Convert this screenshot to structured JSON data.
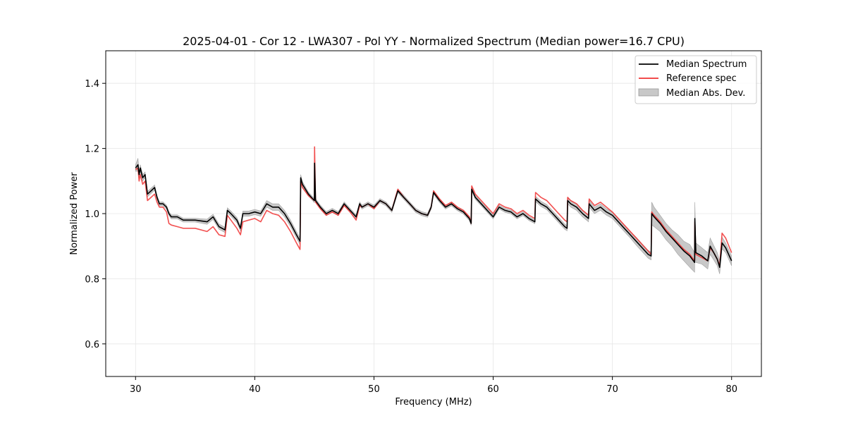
{
  "chart_data": {
    "type": "line",
    "title": "2025-04-01 - Cor 12 - LWA307 - Pol YY - Normalized Spectrum (Median power=16.7 CPU)",
    "xlabel": "Frequency (MHz)",
    "ylabel": "Normalized Power",
    "xlim": [
      27.5,
      82.5
    ],
    "ylim": [
      0.5,
      1.5
    ],
    "xticks": [
      30,
      40,
      50,
      60,
      70,
      80
    ],
    "yticks": [
      0.6,
      0.8,
      1.0,
      1.2,
      1.4
    ],
    "xtick_labels": [
      "30",
      "40",
      "50",
      "60",
      "70",
      "80"
    ],
    "ytick_labels": [
      "0.6",
      "0.8",
      "1.0",
      "1.2",
      "1.4"
    ],
    "grid": true,
    "legend_position": "top-right",
    "legend": [
      "Median Spectrum",
      "Reference spec",
      "Median Abs. Dev."
    ],
    "colors": {
      "median": "#000000",
      "reference": "#f03232",
      "mad_fill": "#c8c8c8",
      "grid": "#e6e6e6"
    },
    "series": [
      {
        "name": "Median Spectrum",
        "x": [
          30.0,
          30.2,
          30.3,
          30.4,
          30.6,
          30.8,
          31.0,
          31.3,
          31.6,
          31.8,
          32.0,
          32.3,
          32.6,
          32.8,
          33.0,
          33.5,
          34.0,
          35.0,
          36.0,
          36.5,
          37.0,
          37.5,
          37.7,
          38.0,
          38.5,
          38.8,
          39.0,
          39.5,
          40.0,
          40.5,
          41.0,
          41.5,
          42.0,
          42.5,
          43.0,
          43.5,
          43.8,
          43.85,
          44.0,
          44.5,
          45.0,
          45.02,
          45.1,
          45.5,
          46.0,
          46.5,
          47.0,
          47.5,
          48.0,
          48.5,
          48.8,
          49.0,
          49.5,
          50.0,
          50.5,
          51.0,
          51.5,
          52.0,
          52.5,
          53.0,
          53.5,
          54.0,
          54.5,
          54.8,
          55.0,
          55.5,
          56.0,
          56.5,
          57.0,
          57.5,
          58.0,
          58.15,
          58.2,
          58.5,
          59.0,
          59.5,
          60.0,
          60.5,
          61.0,
          61.5,
          62.0,
          62.5,
          63.0,
          63.5,
          63.55,
          64.0,
          64.5,
          65.0,
          65.5,
          66.0,
          66.2,
          66.25,
          66.5,
          67.0,
          67.5,
          68.0,
          68.05,
          68.5,
          69.0,
          69.5,
          70.0,
          70.5,
          71.0,
          71.5,
          72.0,
          72.5,
          73.0,
          73.25,
          73.3,
          73.5,
          74.0,
          74.5,
          75.0,
          75.5,
          76.0,
          76.5,
          76.9,
          76.92,
          77.0,
          77.5,
          78.0,
          78.2,
          78.5,
          78.8,
          79.0,
          79.2,
          79.5,
          80.0
        ],
        "values": [
          1.14,
          1.15,
          1.12,
          1.14,
          1.11,
          1.12,
          1.06,
          1.07,
          1.08,
          1.05,
          1.03,
          1.03,
          1.02,
          1.0,
          0.99,
          0.99,
          0.98,
          0.98,
          0.975,
          0.99,
          0.96,
          0.95,
          1.01,
          1.0,
          0.98,
          0.955,
          1.0,
          1.0,
          1.005,
          1.0,
          1.03,
          1.02,
          1.02,
          1.0,
          0.97,
          0.935,
          0.915,
          1.11,
          1.09,
          1.06,
          1.04,
          1.155,
          1.04,
          1.02,
          1.0,
          1.01,
          1.0,
          1.03,
          1.01,
          0.99,
          1.03,
          1.02,
          1.03,
          1.02,
          1.04,
          1.03,
          1.01,
          1.07,
          1.05,
          1.03,
          1.01,
          1.0,
          0.995,
          1.02,
          1.065,
          1.04,
          1.02,
          1.03,
          1.015,
          1.005,
          0.985,
          0.97,
          1.075,
          1.05,
          1.03,
          1.01,
          0.99,
          1.02,
          1.01,
          1.005,
          0.99,
          1.0,
          0.985,
          0.975,
          1.045,
          1.03,
          1.02,
          1.0,
          0.98,
          0.96,
          0.955,
          1.04,
          1.03,
          1.02,
          1.0,
          0.985,
          1.03,
          1.01,
          1.02,
          1.005,
          0.995,
          0.975,
          0.955,
          0.935,
          0.915,
          0.895,
          0.875,
          0.87,
          1.0,
          0.99,
          0.97,
          0.945,
          0.925,
          0.905,
          0.885,
          0.87,
          0.85,
          0.985,
          0.88,
          0.87,
          0.855,
          0.9,
          0.88,
          0.86,
          0.835,
          0.91,
          0.895,
          0.855
        ]
      },
      {
        "name": "Reference spec",
        "x": [
          30.0,
          30.2,
          30.3,
          30.4,
          30.6,
          30.8,
          31.0,
          31.3,
          31.6,
          31.8,
          32.0,
          32.3,
          32.6,
          32.8,
          33.0,
          33.5,
          34.0,
          35.0,
          36.0,
          36.5,
          37.0,
          37.5,
          37.7,
          38.0,
          38.5,
          38.8,
          39.0,
          39.5,
          40.0,
          40.5,
          41.0,
          41.5,
          42.0,
          42.5,
          43.0,
          43.5,
          43.8,
          43.85,
          44.0,
          44.5,
          45.0,
          45.02,
          45.1,
          45.5,
          46.0,
          46.5,
          47.0,
          47.5,
          48.0,
          48.5,
          48.8,
          49.0,
          49.5,
          50.0,
          50.5,
          51.0,
          51.5,
          52.0,
          52.5,
          53.0,
          53.5,
          54.0,
          54.5,
          54.8,
          55.0,
          55.5,
          56.0,
          56.5,
          57.0,
          57.5,
          58.0,
          58.15,
          58.2,
          58.5,
          59.0,
          59.5,
          60.0,
          60.5,
          61.0,
          61.5,
          62.0,
          62.5,
          63.0,
          63.5,
          63.55,
          64.0,
          64.5,
          65.0,
          65.5,
          66.0,
          66.2,
          66.25,
          66.5,
          67.0,
          67.5,
          68.0,
          68.05,
          68.5,
          69.0,
          69.5,
          70.0,
          70.5,
          71.0,
          71.5,
          72.0,
          72.5,
          73.0,
          73.25,
          73.3,
          73.5,
          74.0,
          74.5,
          75.0,
          75.5,
          76.0,
          76.5,
          76.9,
          76.92,
          77.0,
          77.5,
          78.0,
          78.2,
          78.5,
          78.8,
          79.0,
          79.2,
          79.5,
          80.0
        ],
        "values": [
          1.135,
          1.14,
          1.1,
          1.12,
          1.09,
          1.1,
          1.04,
          1.05,
          1.06,
          1.035,
          1.02,
          1.02,
          1.005,
          0.97,
          0.965,
          0.96,
          0.955,
          0.955,
          0.945,
          0.96,
          0.935,
          0.93,
          0.995,
          0.98,
          0.955,
          0.935,
          0.975,
          0.98,
          0.985,
          0.975,
          1.01,
          1.0,
          0.995,
          0.975,
          0.945,
          0.91,
          0.89,
          1.1,
          1.08,
          1.055,
          1.04,
          1.205,
          1.035,
          1.015,
          0.995,
          1.005,
          0.995,
          1.025,
          1.005,
          0.98,
          1.025,
          1.02,
          1.03,
          1.015,
          1.04,
          1.03,
          1.01,
          1.075,
          1.05,
          1.03,
          1.01,
          1.0,
          0.995,
          1.02,
          1.07,
          1.045,
          1.025,
          1.035,
          1.02,
          1.01,
          0.99,
          0.97,
          1.085,
          1.06,
          1.04,
          1.02,
          1.0,
          1.03,
          1.02,
          1.015,
          1.0,
          1.01,
          0.995,
          0.985,
          1.065,
          1.05,
          1.04,
          1.02,
          1.0,
          0.98,
          0.975,
          1.05,
          1.04,
          1.03,
          1.01,
          0.995,
          1.045,
          1.025,
          1.035,
          1.02,
          1.005,
          0.985,
          0.965,
          0.945,
          0.925,
          0.905,
          0.885,
          0.875,
          1.005,
          0.995,
          0.975,
          0.95,
          0.93,
          0.91,
          0.89,
          0.875,
          0.855,
          0.975,
          0.875,
          0.865,
          0.855,
          0.895,
          0.88,
          0.86,
          0.84,
          0.94,
          0.925,
          0.88
        ]
      },
      {
        "name": "Median Abs. Dev.",
        "x": [
          30.0,
          30.2,
          30.3,
          30.4,
          30.6,
          30.8,
          31.0,
          31.3,
          31.6,
          31.8,
          32.0,
          32.3,
          32.6,
          32.8,
          33.0,
          33.5,
          34.0,
          35.0,
          36.0,
          36.5,
          37.0,
          37.5,
          37.7,
          38.0,
          38.5,
          38.8,
          39.0,
          39.5,
          40.0,
          40.5,
          41.0,
          41.5,
          42.0,
          42.5,
          43.0,
          43.5,
          43.8,
          43.85,
          44.0,
          44.5,
          45.0,
          45.02,
          45.1,
          45.5,
          46.0,
          46.5,
          47.0,
          47.5,
          48.0,
          48.5,
          48.8,
          49.0,
          49.5,
          50.0,
          50.5,
          51.0,
          51.5,
          52.0,
          52.5,
          53.0,
          53.5,
          54.0,
          54.5,
          54.8,
          55.0,
          55.5,
          56.0,
          56.5,
          57.0,
          57.5,
          58.0,
          58.15,
          58.2,
          58.5,
          59.0,
          59.5,
          60.0,
          60.5,
          61.0,
          61.5,
          62.0,
          62.5,
          63.0,
          63.5,
          63.55,
          64.0,
          64.5,
          65.0,
          65.5,
          66.0,
          66.2,
          66.25,
          66.5,
          67.0,
          67.5,
          68.0,
          68.05,
          68.5,
          69.0,
          69.5,
          70.0,
          70.5,
          71.0,
          71.5,
          72.0,
          72.5,
          73.0,
          73.25,
          73.3,
          73.5,
          74.0,
          74.5,
          75.0,
          75.5,
          76.0,
          76.5,
          76.9,
          76.92,
          77.0,
          77.5,
          78.0,
          78.2,
          78.5,
          78.8,
          79.0,
          79.2,
          79.5,
          80.0
        ],
        "deviation": [
          0.01,
          0.02,
          0.01,
          0.01,
          0.01,
          0.008,
          0.008,
          0.008,
          0.008,
          0.006,
          0.006,
          0.006,
          0.006,
          0.006,
          0.006,
          0.006,
          0.006,
          0.006,
          0.008,
          0.008,
          0.008,
          0.008,
          0.008,
          0.008,
          0.008,
          0.008,
          0.008,
          0.008,
          0.008,
          0.008,
          0.01,
          0.01,
          0.01,
          0.01,
          0.01,
          0.01,
          0.01,
          0.01,
          0.008,
          0.006,
          0.006,
          0.006,
          0.006,
          0.006,
          0.006,
          0.006,
          0.006,
          0.006,
          0.006,
          0.006,
          0.006,
          0.006,
          0.006,
          0.006,
          0.006,
          0.006,
          0.006,
          0.006,
          0.006,
          0.006,
          0.006,
          0.006,
          0.006,
          0.006,
          0.006,
          0.006,
          0.006,
          0.006,
          0.006,
          0.006,
          0.006,
          0.006,
          0.006,
          0.006,
          0.006,
          0.006,
          0.006,
          0.006,
          0.006,
          0.006,
          0.006,
          0.006,
          0.006,
          0.006,
          0.008,
          0.008,
          0.008,
          0.008,
          0.008,
          0.008,
          0.008,
          0.01,
          0.01,
          0.01,
          0.01,
          0.01,
          0.01,
          0.01,
          0.01,
          0.01,
          0.01,
          0.01,
          0.01,
          0.01,
          0.012,
          0.012,
          0.012,
          0.012,
          0.035,
          0.03,
          0.025,
          0.025,
          0.025,
          0.03,
          0.03,
          0.035,
          0.03,
          0.05,
          0.03,
          0.025,
          0.025,
          0.025,
          0.022,
          0.02,
          0.02,
          0.018,
          0.015,
          0.015
        ]
      }
    ]
  }
}
